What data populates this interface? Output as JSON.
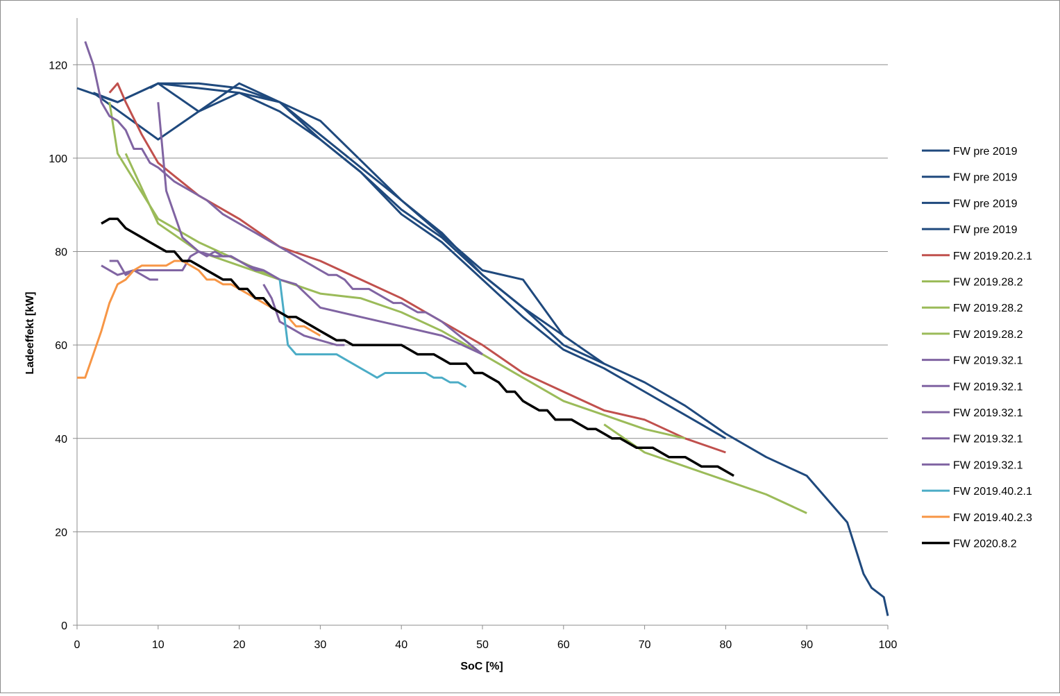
{
  "chart_data": {
    "type": "line",
    "xlabel": "SoC [%]",
    "ylabel": "Ladeeffekt [kW]",
    "xlim": [
      0,
      100
    ],
    "ylim": [
      0,
      130
    ],
    "xticks": [
      0,
      10,
      20,
      30,
      40,
      50,
      60,
      70,
      80,
      90,
      100
    ],
    "yticks": [
      0,
      20,
      40,
      60,
      80,
      100,
      120
    ],
    "grid": "horizontal",
    "legend": "right",
    "series": [
      {
        "name": "FW pre 2019",
        "color": "#1f497d",
        "x": [
          0,
          5,
          10,
          15,
          20,
          25,
          30,
          40,
          50,
          55,
          60,
          65,
          70,
          75,
          80,
          85,
          90,
          95,
          97,
          98,
          99.5,
          100
        ],
        "y": [
          115,
          112,
          116,
          116,
          115,
          112,
          108,
          91,
          76,
          74,
          62,
          56,
          52,
          47,
          41,
          36,
          32,
          22,
          11,
          8,
          6,
          2
        ]
      },
      {
        "name": "FW pre 2019",
        "color": "#1f497d",
        "x": [
          2,
          5,
          10,
          15,
          20,
          25,
          30,
          35,
          40,
          45,
          50,
          55,
          60,
          65,
          70,
          75,
          80
        ],
        "y": [
          114,
          112,
          116,
          110,
          116,
          112,
          104,
          97,
          88,
          82,
          74,
          66,
          59,
          55,
          50,
          45,
          40
        ]
      },
      {
        "name": "FW pre 2019",
        "color": "#1f497d",
        "x": [
          9,
          10,
          15,
          20,
          25,
          30,
          35,
          40,
          45,
          50,
          55,
          60,
          65
        ],
        "y": [
          115,
          116,
          115,
          114,
          110,
          104,
          97,
          89,
          83,
          75,
          68,
          60,
          56
        ]
      },
      {
        "name": "FW pre 2019",
        "color": "#1f497d",
        "x": [
          2,
          6,
          10,
          15,
          20,
          25,
          30,
          35,
          40,
          45,
          50,
          55,
          60
        ],
        "y": [
          114,
          109,
          104,
          110,
          114,
          112,
          105,
          98,
          91,
          84,
          75,
          68,
          62
        ]
      },
      {
        "name": "FW 2019.20.2.1",
        "color": "#c0504d",
        "x": [
          4,
          5,
          6,
          8,
          10,
          15,
          20,
          25,
          30,
          35,
          40,
          43,
          45,
          50,
          55,
          60,
          65,
          70,
          75,
          80
        ],
        "y": [
          114,
          116,
          112,
          105,
          99,
          92,
          87,
          81,
          78,
          74,
          70,
          67,
          65,
          60,
          54,
          50,
          46,
          44,
          40,
          37
        ]
      },
      {
        "name": "FW 2019.28.2",
        "color": "#9bbb59",
        "x": [
          4,
          5,
          10,
          15,
          20,
          25,
          30,
          35,
          40,
          45,
          50,
          55,
          60,
          65,
          70,
          75
        ],
        "y": [
          112,
          101,
          87,
          82,
          78,
          74,
          71,
          70,
          67,
          63,
          58,
          53,
          48,
          45,
          42,
          40
        ]
      },
      {
        "name": "FW 2019.28.2",
        "color": "#9bbb59",
        "x": [
          6,
          10,
          15,
          20,
          25
        ],
        "y": [
          101,
          86,
          80,
          77,
          74
        ]
      },
      {
        "name": "FW 2019.28.2",
        "color": "#9bbb59",
        "x": [
          65,
          70,
          75,
          80,
          85,
          90
        ],
        "y": [
          43,
          37,
          34,
          31,
          28,
          24
        ]
      },
      {
        "name": "FW 2019.32.1",
        "color": "#8064a2",
        "x": [
          1,
          2,
          3,
          4,
          5,
          6,
          7,
          8,
          9,
          10,
          12,
          14,
          16,
          18,
          20,
          22,
          24,
          26,
          28,
          29,
          30,
          31,
          32,
          33,
          34,
          36,
          38,
          39,
          40,
          41,
          42,
          43,
          45,
          50
        ],
        "y": [
          125,
          120,
          112,
          109,
          108,
          106,
          102,
          102,
          99,
          98,
          95,
          93,
          91,
          88,
          86,
          84,
          82,
          80,
          78,
          77,
          76,
          75,
          75,
          74,
          72,
          72,
          70,
          69,
          69,
          68,
          67,
          67,
          65,
          58
        ]
      },
      {
        "name": "FW 2019.32.1",
        "color": "#8064a2",
        "x": [
          10,
          11,
          13,
          15,
          17,
          19,
          21,
          23,
          25,
          27,
          30,
          35,
          40,
          45,
          50
        ],
        "y": [
          112,
          93,
          83,
          80,
          79,
          79,
          77,
          76,
          74,
          73,
          68,
          66,
          64,
          62,
          58
        ]
      },
      {
        "name": "FW 2019.32.1",
        "color": "#8064a2",
        "x": [
          3,
          5,
          7,
          9,
          10
        ],
        "y": [
          77,
          75,
          76,
          74,
          74
        ]
      },
      {
        "name": "FW 2019.32.1",
        "color": "#8064a2",
        "x": [
          4,
          5,
          6,
          7,
          8,
          10,
          11,
          12,
          13,
          14,
          15,
          16,
          17,
          18,
          19,
          20,
          21,
          22,
          23,
          24,
          25
        ],
        "y": [
          78,
          78,
          75,
          76,
          76,
          76,
          76,
          76,
          76,
          79,
          80,
          79,
          80,
          79,
          79,
          78,
          77,
          76,
          76,
          75,
          74
        ]
      },
      {
        "name": "FW 2019.32.1",
        "color": "#8064a2",
        "x": [
          23,
          24,
          25,
          26,
          28,
          30,
          32,
          33
        ],
        "y": [
          73,
          70,
          65,
          64,
          62,
          61,
          60,
          60
        ]
      },
      {
        "name": "FW 2019.40.2.1",
        "color": "#4bacc6",
        "x": [
          25,
          26,
          27,
          28,
          29,
          30,
          31,
          32,
          33,
          34,
          35,
          36,
          37,
          38,
          39,
          40,
          41,
          42,
          43,
          44,
          45,
          46,
          47,
          48
        ],
        "y": [
          74,
          60,
          58,
          58,
          58,
          58,
          58,
          58,
          57,
          56,
          55,
          54,
          53,
          54,
          54,
          54,
          54,
          54,
          54,
          53,
          53,
          52,
          52,
          51
        ]
      },
      {
        "name": "FW 2019.40.2.3",
        "color": "#f79646",
        "x": [
          0,
          1,
          2,
          3,
          4,
          5,
          6,
          7,
          8,
          9,
          10,
          11,
          12,
          13,
          14,
          15,
          16,
          17,
          18,
          19,
          20,
          21,
          22,
          23,
          24,
          25,
          26,
          27,
          28,
          29,
          30
        ],
        "y": [
          53,
          53,
          58,
          63,
          69,
          73,
          74,
          76,
          77,
          77,
          77,
          77,
          78,
          78,
          77,
          76,
          74,
          74,
          73,
          73,
          72,
          71,
          70,
          69,
          68,
          67,
          66,
          64,
          64,
          63,
          62
        ]
      },
      {
        "name": "FW 2020.8.2",
        "color": "#000000",
        "x": [
          3,
          4,
          5,
          6,
          7,
          8,
          9,
          10,
          11,
          12,
          13,
          14,
          15,
          16,
          17,
          18,
          19,
          20,
          21,
          22,
          23,
          24,
          25,
          26,
          27,
          28,
          29,
          30,
          31,
          32,
          33,
          34,
          35,
          36,
          37,
          38,
          39,
          40,
          41,
          42,
          43,
          44,
          45,
          46,
          47,
          48,
          49,
          50,
          51,
          52,
          53,
          54,
          55,
          56,
          57,
          58,
          59,
          60,
          61,
          62,
          63,
          64,
          65,
          66,
          67,
          68,
          69,
          70,
          71,
          72,
          73,
          74,
          75,
          76,
          77,
          78,
          79,
          80,
          81
        ],
        "y": [
          86,
          87,
          87,
          85,
          84,
          83,
          82,
          81,
          80,
          80,
          78,
          78,
          77,
          76,
          75,
          74,
          74,
          72,
          72,
          70,
          70,
          68,
          67,
          66,
          66,
          65,
          64,
          63,
          62,
          61,
          61,
          60,
          60,
          60,
          60,
          60,
          60,
          60,
          59,
          58,
          58,
          58,
          57,
          56,
          56,
          56,
          54,
          54,
          53,
          52,
          50,
          50,
          48,
          47,
          46,
          46,
          44,
          44,
          44,
          43,
          42,
          42,
          41,
          40,
          40,
          39,
          38,
          38,
          38,
          37,
          36,
          36,
          36,
          35,
          34,
          34,
          34,
          33,
          32
        ]
      }
    ]
  }
}
